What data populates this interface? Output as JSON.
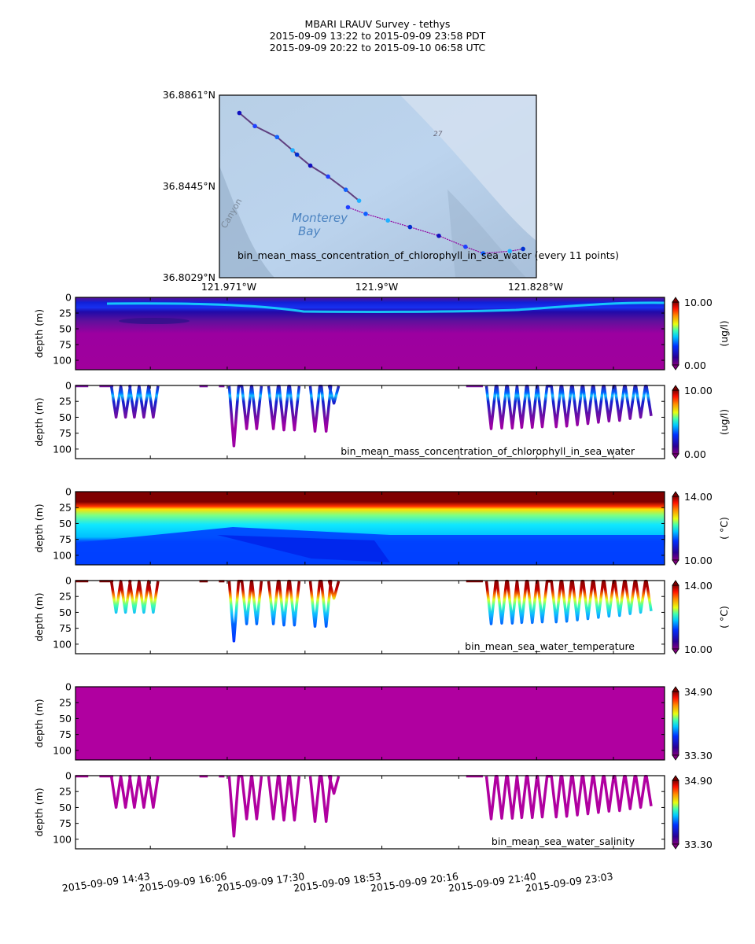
{
  "header": {
    "title": "MBARI LRAUV Survey - tethys",
    "line_pdt": "2015-09-09 13:22  to  2015-09-09 23:58 PDT",
    "line_utc": "2015-09-09 20:22  to  2015-09-10 06:58 UTC"
  },
  "chart_data": [
    {
      "type": "scatter",
      "name": "map",
      "caption": "bin_mean_mass_concentration_of_chlorophyll_in_sea_water (every 11 points)",
      "map_labels": [
        "Monterey",
        "Bay",
        "Canyon",
        "27"
      ],
      "lat_ticks": [
        "36.8861°N",
        "36.8445°N",
        "36.8029°N"
      ],
      "lon_ticks": [
        "121.971°W",
        "121.9°W",
        "121.828°W"
      ],
      "lat_range": [
        36.8029,
        36.8861
      ],
      "lon_range": [
        -121.971,
        -121.828
      ],
      "track_segment_1": [
        [
          -121.962,
          36.878
        ],
        [
          -121.955,
          36.872
        ],
        [
          -121.945,
          36.867
        ],
        [
          -121.938,
          36.861
        ],
        [
          -121.936,
          36.859
        ],
        [
          -121.93,
          36.854
        ],
        [
          -121.922,
          36.849
        ],
        [
          -121.914,
          36.843
        ],
        [
          -121.908,
          36.838
        ]
      ],
      "track_segment_2": [
        [
          -121.913,
          36.835
        ],
        [
          -121.905,
          36.832
        ],
        [
          -121.895,
          36.829
        ],
        [
          -121.885,
          36.826
        ],
        [
          -121.872,
          36.822
        ],
        [
          -121.86,
          36.817
        ],
        [
          -121.852,
          36.814
        ],
        [
          -121.84,
          36.815
        ],
        [
          -121.834,
          36.816
        ]
      ]
    },
    {
      "type": "heatmap",
      "name": "chlorophyll-curtain",
      "ylabel": "depth (m)",
      "yticks": [
        0,
        25,
        50,
        75,
        100
      ],
      "ylim": [
        115,
        0
      ],
      "colorbar": {
        "min": "0.00",
        "max": "10.00",
        "unit": "(ug/l)"
      }
    },
    {
      "type": "line",
      "name": "chlorophyll-profile",
      "ylabel": "depth (m)",
      "yticks": [
        0,
        25,
        50,
        75,
        100
      ],
      "ylim": [
        115,
        0
      ],
      "label": "bin_mean_mass_concentration_of_chlorophyll_in_sea_water",
      "colorbar": {
        "min": "0.00",
        "max": "10.00",
        "unit": "(ug/l)"
      }
    },
    {
      "type": "heatmap",
      "name": "temperature-curtain",
      "ylabel": "depth (m)",
      "yticks": [
        0,
        25,
        50,
        75,
        100
      ],
      "ylim": [
        115,
        0
      ],
      "colorbar": {
        "min": "10.00",
        "max": "14.00",
        "unit": "( °C)"
      }
    },
    {
      "type": "line",
      "name": "temperature-profile",
      "ylabel": "depth (m)",
      "yticks": [
        0,
        25,
        50,
        75,
        100
      ],
      "ylim": [
        115,
        0
      ],
      "label": "bin_mean_sea_water_temperature",
      "colorbar": {
        "min": "10.00",
        "max": "14.00",
        "unit": "( °C)"
      }
    },
    {
      "type": "heatmap",
      "name": "salinity-curtain",
      "ylabel": "depth (m)",
      "yticks": [
        0,
        25,
        50,
        75,
        100
      ],
      "ylim": [
        115,
        0
      ],
      "colorbar": {
        "min": "33.30",
        "max": "34.90",
        "unit": ""
      }
    },
    {
      "type": "line",
      "name": "salinity-profile",
      "ylabel": "depth (m)",
      "yticks": [
        0,
        25,
        50,
        75,
        100
      ],
      "ylim": [
        115,
        0
      ],
      "label": "bin_mean_sea_water_salinity",
      "colorbar": {
        "min": "33.30",
        "max": "34.90",
        "unit": ""
      }
    }
  ],
  "time_axis": {
    "range_hours": [
      13.37,
      23.97
    ],
    "ticks": [
      "2015-09-09 14:43",
      "2015-09-09 16:06",
      "2015-09-09 17:30",
      "2015-09-09 18:53",
      "2015-09-09 20:16",
      "2015-09-09 21:40",
      "2015-09-09 23:03"
    ],
    "tick_hours": [
      14.717,
      16.1,
      17.5,
      18.883,
      20.267,
      21.667,
      23.05
    ]
  },
  "profile_dives": {
    "surface_segments": [
      [
        13.37,
        13.6
      ],
      [
        13.8,
        14.05
      ],
      [
        15.6,
        15.75
      ],
      [
        15.95,
        16.05
      ],
      [
        20.4,
        20.7
      ]
    ],
    "dives": [
      {
        "t": 14.1,
        "d": 50
      },
      {
        "t": 14.27,
        "d": 50
      },
      {
        "t": 14.43,
        "d": 50
      },
      {
        "t": 14.6,
        "d": 50
      },
      {
        "t": 14.77,
        "d": 50
      },
      {
        "t": 16.22,
        "d": 95
      },
      {
        "t": 16.45,
        "d": 68
      },
      {
        "t": 16.63,
        "d": 68
      },
      {
        "t": 16.93,
        "d": 68
      },
      {
        "t": 17.12,
        "d": 70
      },
      {
        "t": 17.31,
        "d": 70
      },
      {
        "t": 17.68,
        "d": 72
      },
      {
        "t": 17.88,
        "d": 72
      },
      {
        "t": 18.02,
        "d": 28
      },
      {
        "t": 20.85,
        "d": 68
      },
      {
        "t": 21.04,
        "d": 67
      },
      {
        "t": 21.23,
        "d": 67
      },
      {
        "t": 21.4,
        "d": 66
      },
      {
        "t": 21.59,
        "d": 66
      },
      {
        "t": 21.77,
        "d": 65
      },
      {
        "t": 22.02,
        "d": 65
      },
      {
        "t": 22.21,
        "d": 64
      },
      {
        "t": 22.4,
        "d": 62
      },
      {
        "t": 22.59,
        "d": 60
      },
      {
        "t": 22.78,
        "d": 58
      },
      {
        "t": 22.97,
        "d": 56
      },
      {
        "t": 23.16,
        "d": 55
      },
      {
        "t": 23.35,
        "d": 52
      },
      {
        "t": 23.54,
        "d": 50
      },
      {
        "t": 23.73,
        "d": 48
      }
    ]
  }
}
